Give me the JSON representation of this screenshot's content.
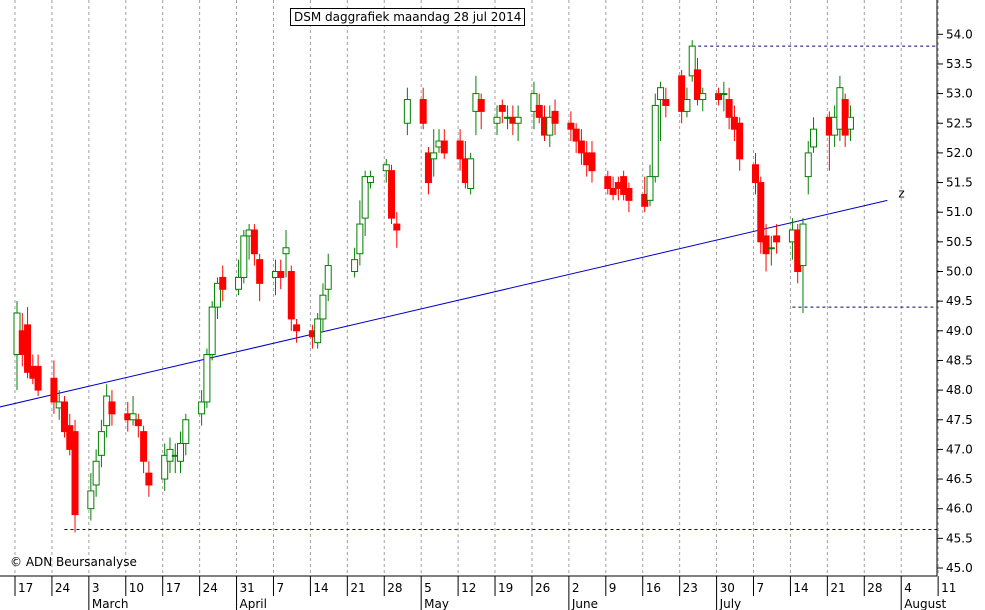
{
  "title": "DSM daggrafiek maandag 28 jul 2014",
  "copyright": "© ADN Beursanalyse",
  "colors": {
    "up": "#008000",
    "down": "#ff0000",
    "trendline": "#0000cc",
    "level": "#000080",
    "grid": "#a0a0a0"
  },
  "trendline_label": "z",
  "chart_data": {
    "type": "candlestick",
    "title": "DSM daggrafiek maandag 28 jul 2014",
    "ylim": [
      44.9,
      54.5
    ],
    "y_ticks": [
      "45.0",
      "45.5",
      "46.0",
      "46.5",
      "47.0",
      "47.5",
      "48.0",
      "48.5",
      "49.0",
      "49.5",
      "50.0",
      "50.5",
      "51.0",
      "51.5",
      "52.0",
      "52.5",
      "53.0",
      "53.5",
      "54.0"
    ],
    "day_ticks": [
      "17",
      "24",
      "3",
      "10",
      "17",
      "24",
      "31",
      "7",
      "14",
      "21",
      "28",
      "5",
      "12",
      "19",
      "26",
      "2",
      "9",
      "16",
      "23",
      "30",
      "7",
      "14",
      "21",
      "28",
      "4",
      "11"
    ],
    "month_labels": [
      "March",
      "April",
      "May",
      "June",
      "July",
      "August"
    ],
    "candles": [
      [
        "2014-02-17",
        48.6,
        49.3,
        48.0,
        49.5
      ],
      [
        "2014-02-18",
        49.0,
        48.6,
        48.4,
        49.3
      ],
      [
        "2014-02-19",
        49.1,
        48.3,
        48.2,
        49.4
      ],
      [
        "2014-02-20",
        48.4,
        48.2,
        48.1,
        48.6
      ],
      [
        "2014-02-21",
        48.4,
        48.0,
        47.9,
        48.6
      ],
      [
        "2014-02-24",
        48.2,
        47.8,
        47.6,
        48.5
      ],
      [
        "2014-02-25",
        47.7,
        47.8,
        47.5,
        48.0
      ],
      [
        "2014-02-26",
        47.8,
        47.3,
        47.2,
        47.9
      ],
      [
        "2014-02-27",
        47.4,
        47.0,
        46.9,
        47.6
      ],
      [
        "2014-02-28",
        47.3,
        45.9,
        45.6,
        47.5
      ],
      [
        "2014-03-03",
        46.0,
        46.3,
        45.8,
        46.6
      ],
      [
        "2014-03-04",
        46.4,
        46.8,
        46.2,
        47.0
      ],
      [
        "2014-03-05",
        46.9,
        47.3,
        46.7,
        47.5
      ],
      [
        "2014-03-06",
        47.4,
        47.9,
        47.2,
        48.1
      ],
      [
        "2014-03-07",
        47.8,
        47.6,
        47.4,
        48.0
      ],
      [
        "2014-03-10",
        47.6,
        47.5,
        47.3,
        47.8
      ],
      [
        "2014-03-11",
        47.5,
        47.6,
        47.4,
        47.9
      ],
      [
        "2014-03-12",
        47.5,
        47.4,
        47.2,
        47.6
      ],
      [
        "2014-03-13",
        47.3,
        46.8,
        46.6,
        47.4
      ],
      [
        "2014-03-14",
        46.6,
        46.4,
        46.2,
        46.8
      ],
      [
        "2014-03-17",
        46.5,
        46.9,
        46.3,
        47.1
      ],
      [
        "2014-03-18",
        46.8,
        47.0,
        46.6,
        47.2
      ],
      [
        "2014-03-19",
        46.9,
        46.9,
        46.6,
        47.1
      ],
      [
        "2014-03-20",
        46.8,
        47.1,
        46.6,
        47.3
      ],
      [
        "2014-03-21",
        47.1,
        47.5,
        46.9,
        47.6
      ],
      [
        "2014-03-24",
        47.6,
        47.8,
        47.4,
        48.0
      ],
      [
        "2014-03-25",
        47.8,
        48.6,
        47.7,
        48.7
      ],
      [
        "2014-03-26",
        48.6,
        49.4,
        48.5,
        49.5
      ],
      [
        "2014-03-27",
        49.4,
        49.8,
        49.2,
        49.9
      ],
      [
        "2014-03-28",
        49.9,
        49.7,
        49.5,
        50.1
      ],
      [
        "2014-03-31",
        49.7,
        49.9,
        49.6,
        50.2
      ],
      [
        "2014-04-01",
        49.9,
        50.6,
        49.8,
        50.7
      ],
      [
        "2014-04-02",
        50.6,
        50.7,
        50.2,
        50.8
      ],
      [
        "2014-04-03",
        50.7,
        50.3,
        50.1,
        50.8
      ],
      [
        "2014-04-04",
        50.2,
        49.8,
        49.5,
        50.3
      ],
      [
        "2014-04-07",
        49.9,
        50.0,
        49.6,
        50.2
      ],
      [
        "2014-04-08",
        50.0,
        49.9,
        49.7,
        50.2
      ],
      [
        "2014-04-09",
        50.3,
        50.4,
        49.9,
        50.7
      ],
      [
        "2014-04-10",
        50.0,
        49.2,
        49.0,
        50.1
      ],
      [
        "2014-04-11",
        49.1,
        49.0,
        48.8,
        49.2
      ],
      [
        "2014-04-14",
        49.0,
        48.9,
        48.7,
        49.1
      ],
      [
        "2014-04-15",
        48.8,
        49.2,
        48.7,
        49.3
      ],
      [
        "2014-04-16",
        49.2,
        49.6,
        49.0,
        49.8
      ],
      [
        "2014-04-17",
        49.7,
        50.1,
        49.5,
        50.3
      ],
      [
        "2014-04-22",
        50.0,
        50.2,
        49.9,
        50.4
      ],
      [
        "2014-04-23",
        50.3,
        50.8,
        50.1,
        51.2
      ],
      [
        "2014-04-24",
        50.9,
        51.6,
        50.6,
        51.7
      ],
      [
        "2014-04-25",
        51.5,
        51.6,
        51.4,
        51.7
      ],
      [
        "2014-04-28",
        51.7,
        51.8,
        51.5,
        51.9
      ],
      [
        "2014-04-29",
        51.7,
        50.9,
        50.8,
        51.8
      ],
      [
        "2014-04-30",
        50.8,
        50.7,
        50.4,
        51.0
      ],
      [
        "2014-05-02",
        52.5,
        52.9,
        52.3,
        53.1
      ],
      [
        "2014-05-05",
        52.9,
        52.5,
        52.4,
        53.1
      ],
      [
        "2014-05-06",
        52.0,
        51.5,
        51.3,
        52.1
      ],
      [
        "2014-05-07",
        51.9,
        52.0,
        51.6,
        52.4
      ],
      [
        "2014-05-08",
        52.1,
        52.2,
        52.0,
        52.4
      ],
      [
        "2014-05-09",
        52.2,
        52.0,
        51.9,
        52.4
      ],
      [
        "2014-05-12",
        52.2,
        51.9,
        51.7,
        52.4
      ],
      [
        "2014-05-13",
        51.9,
        51.5,
        51.4,
        52.2
      ],
      [
        "2014-05-14",
        51.4,
        51.9,
        51.3,
        52.0
      ],
      [
        "2014-05-15",
        52.7,
        53.0,
        52.3,
        53.3
      ],
      [
        "2014-05-16",
        52.9,
        52.7,
        52.4,
        53.0
      ],
      [
        "2014-05-19",
        52.5,
        52.6,
        52.3,
        52.8
      ],
      [
        "2014-05-20",
        52.8,
        52.7,
        52.5,
        52.9
      ],
      [
        "2014-05-21",
        52.6,
        52.6,
        52.4,
        52.8
      ],
      [
        "2014-05-22",
        52.6,
        52.5,
        52.3,
        52.8
      ],
      [
        "2014-05-23",
        52.5,
        52.6,
        52.2,
        52.8
      ],
      [
        "2014-05-26",
        52.7,
        53.0,
        52.4,
        53.2
      ],
      [
        "2014-05-27",
        52.8,
        52.6,
        52.5,
        53.0
      ],
      [
        "2014-05-28",
        52.6,
        52.3,
        52.2,
        52.8
      ],
      [
        "2014-05-29",
        52.3,
        52.6,
        52.1,
        52.8
      ],
      [
        "2014-05-30",
        52.7,
        52.5,
        52.3,
        52.9
      ],
      [
        "2014-06-02",
        52.5,
        52.4,
        52.2,
        52.7
      ],
      [
        "2014-06-03",
        52.4,
        52.2,
        52.0,
        52.5
      ],
      [
        "2014-06-04",
        52.2,
        52.0,
        51.8,
        52.4
      ],
      [
        "2014-06-05",
        52.0,
        51.8,
        51.6,
        52.2
      ],
      [
        "2014-06-06",
        52.0,
        51.7,
        51.5,
        52.2
      ],
      [
        "2014-06-09",
        51.6,
        51.4,
        51.3,
        51.7
      ],
      [
        "2014-06-10",
        51.4,
        51.3,
        51.2,
        51.6
      ],
      [
        "2014-06-11",
        51.5,
        51.4,
        51.2,
        51.6
      ],
      [
        "2014-06-12",
        51.6,
        51.3,
        51.2,
        51.7
      ],
      [
        "2014-06-13",
        51.4,
        51.2,
        51.0,
        51.5
      ],
      [
        "2014-06-16",
        51.3,
        51.1,
        51.0,
        51.6
      ],
      [
        "2014-06-17",
        51.2,
        51.6,
        51.1,
        51.8
      ],
      [
        "2014-06-18",
        51.6,
        52.8,
        51.5,
        53.0
      ],
      [
        "2014-06-19",
        52.9,
        53.1,
        52.2,
        53.2
      ],
      [
        "2014-06-20",
        52.9,
        52.8,
        52.6,
        53.1
      ],
      [
        "2014-06-23",
        53.3,
        52.7,
        52.5,
        53.4
      ],
      [
        "2014-06-24",
        52.7,
        52.9,
        52.6,
        53.1
      ],
      [
        "2014-06-25",
        53.3,
        53.8,
        53.2,
        53.9
      ],
      [
        "2014-06-26",
        53.4,
        52.9,
        52.8,
        53.6
      ],
      [
        "2014-06-27",
        52.9,
        53.0,
        52.7,
        53.1
      ],
      [
        "2014-06-30",
        53.0,
        52.9,
        52.8,
        53.1
      ],
      [
        "2014-07-01",
        53.0,
        53.0,
        52.7,
        53.2
      ],
      [
        "2014-07-02",
        52.9,
        52.6,
        52.4,
        53.1
      ],
      [
        "2014-07-03",
        52.6,
        52.4,
        52.2,
        52.8
      ],
      [
        "2014-07-04",
        52.5,
        51.9,
        51.7,
        52.6
      ],
      [
        "2014-07-07",
        51.8,
        51.5,
        51.3,
        52.0
      ],
      [
        "2014-07-08",
        51.5,
        50.5,
        50.3,
        51.6
      ],
      [
        "2014-07-09",
        50.6,
        50.3,
        50.0,
        50.8
      ],
      [
        "2014-07-10",
        50.4,
        50.4,
        50.1,
        50.6
      ],
      [
        "2014-07-11",
        50.6,
        50.5,
        50.3,
        50.8
      ],
      [
        "2014-07-14",
        50.5,
        50.7,
        50.2,
        50.9
      ],
      [
        "2014-07-15",
        50.7,
        50.0,
        49.8,
        50.8
      ],
      [
        "2014-07-16",
        50.1,
        50.8,
        49.3,
        50.9
      ],
      [
        "2014-07-17",
        51.6,
        52.0,
        51.3,
        52.2
      ],
      [
        "2014-07-18",
        52.1,
        52.4,
        52.0,
        52.6
      ],
      [
        "2014-07-21",
        52.6,
        52.3,
        51.7,
        52.7
      ],
      [
        "2014-07-22",
        52.3,
        52.6,
        52.1,
        52.8
      ],
      [
        "2014-07-23",
        52.4,
        53.1,
        52.2,
        53.3
      ],
      [
        "2014-07-24",
        52.9,
        52.3,
        52.1,
        53.0
      ],
      [
        "2014-07-25",
        52.4,
        52.6,
        52.2,
        52.8
      ]
    ],
    "trendline": {
      "from": [
        "2014-02-13",
        47.7
      ],
      "to": [
        "2014-08-01",
        51.2
      ]
    },
    "support_lines": [
      {
        "value": 53.8,
        "from": "2014-06-25",
        "to": "2014-08-15"
      },
      {
        "value": 49.4,
        "from": "2014-07-14",
        "to": "2014-08-15"
      },
      {
        "value": 45.65,
        "from": "2014-02-26",
        "to": "2014-08-15"
      }
    ]
  }
}
